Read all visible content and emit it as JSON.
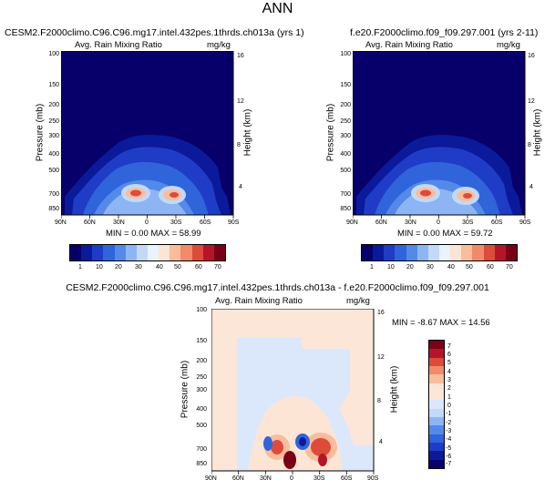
{
  "figure_title": "ANN",
  "colors": {
    "ramp_seq": [
      "#08006a",
      "#0a1a9a",
      "#1f3cc6",
      "#2f64db",
      "#5489e8",
      "#8db5f3",
      "#c2d9f8",
      "#eaf2fc",
      "#fde5d6",
      "#f9bd9c",
      "#f18a6b",
      "#dc4b3b",
      "#b5152a",
      "#7a0015"
    ],
    "ramp_diff": [
      "#08006a",
      "#0a1a9a",
      "#1f3cc6",
      "#2f64db",
      "#5489e8",
      "#8db5f3",
      "#c2d9f8",
      "#dbe8fb",
      "#fbe6d8",
      "#fde5d6",
      "#f9bd9c",
      "#f18a6b",
      "#dc4b3b",
      "#b5152a",
      "#7a0015"
    ]
  },
  "chart_data": [
    {
      "type": "heatmap",
      "panel": "top-left",
      "title": "CESM2.F2000climo.C96.C96.mg17.intel.432pes.1thrds.ch013a (yrs 1)",
      "subtitle_left": "Avg. Rain Mixing Ratio",
      "subtitle_right": "mg/kg",
      "ylabel": "Pressure (mb)",
      "ylabel_right": "Height (km)",
      "x_ticks": [
        "90N",
        "60N",
        "30N",
        "0",
        "30S",
        "60S",
        "90S"
      ],
      "y_ticks": [
        "100",
        "150",
        "200",
        "250",
        "300",
        "400",
        "500",
        "700",
        "850"
      ],
      "y_ticks_right": [
        "16",
        "12",
        "8",
        "4"
      ],
      "stats": "MIN =  0.00   MAX =  58.99",
      "colorbar_labels": [
        "1",
        "10",
        "20",
        "30",
        "40",
        "50",
        "60",
        "70"
      ],
      "features": [
        {
          "lat": 12,
          "p": 700,
          "value": 55
        },
        {
          "lat": -18,
          "p": 700,
          "value": 50
        }
      ]
    },
    {
      "type": "heatmap",
      "panel": "top-right",
      "title": "f.e20.F2000climo.f09_f09.297.001 (yrs 2-11)",
      "subtitle_left": "Avg. Rain Mixing Ratio",
      "subtitle_right": "mg/kg",
      "ylabel": "Pressure (mb)",
      "ylabel_right": "Height (km)",
      "x_ticks": [
        "90N",
        "60N",
        "30N",
        "0",
        "30S",
        "60S",
        "90S"
      ],
      "y_ticks": [
        "100",
        "150",
        "200",
        "250",
        "300",
        "400",
        "500",
        "700",
        "850"
      ],
      "y_ticks_right": [
        "16",
        "12",
        "8",
        "4"
      ],
      "stats": "MIN =  0.00   MAX =  59.72",
      "colorbar_labels": [
        "1",
        "10",
        "20",
        "30",
        "40",
        "50",
        "60",
        "70"
      ],
      "features": [
        {
          "lat": 12,
          "p": 700,
          "value": 56
        },
        {
          "lat": -18,
          "p": 700,
          "value": 52
        }
      ]
    },
    {
      "type": "heatmap",
      "panel": "bottom",
      "title": "CESM2.F2000climo.C96.C96.mg17.intel.432pes.1thrds.ch013a - f.e20.F2000climo.f09_f09.297.001",
      "subtitle_left": "Avg. Rain Mixing Ratio",
      "subtitle_right": "mg/kg",
      "ylabel": "Pressure (mb)",
      "ylabel_right": "Height (km)",
      "x_ticks": [
        "90N",
        "60N",
        "30N",
        "0",
        "30S",
        "60S",
        "90S"
      ],
      "y_ticks": [
        "100",
        "150",
        "200",
        "250",
        "300",
        "400",
        "500",
        "700",
        "850"
      ],
      "y_ticks_right": [
        "16",
        "12",
        "8",
        "4"
      ],
      "stats": "MIN = -8.67   MAX =  14.56",
      "colorbar_labels": [
        "7",
        "6",
        "5",
        "4",
        "3",
        "2",
        "1",
        "0",
        "-1",
        "-2",
        "-3",
        "-4",
        "-5",
        "-6",
        "-7"
      ],
      "features": [
        {
          "lat": 0,
          "p": 850,
          "value": 14.56
        },
        {
          "lat": 8,
          "p": 700,
          "value": -8.67
        }
      ]
    }
  ]
}
